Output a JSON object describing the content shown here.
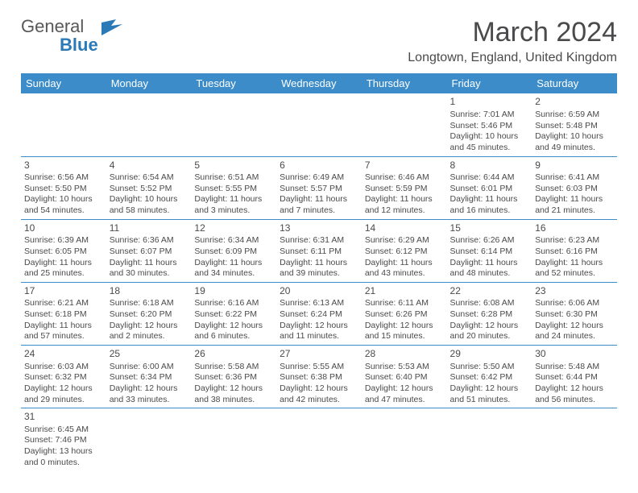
{
  "logo": {
    "textMain": "General",
    "textAccent": "Blue",
    "colors": {
      "main": "#58585a",
      "accent": "#2a7ab8"
    }
  },
  "header": {
    "monthTitle": "March 2024",
    "location": "Longtown, England, United Kingdom"
  },
  "calendar": {
    "dayHeaders": [
      "Sunday",
      "Monday",
      "Tuesday",
      "Wednesday",
      "Thursday",
      "Friday",
      "Saturday"
    ],
    "headerBg": "#3c8cc9",
    "borderColor": "#3c8cc9",
    "weeks": [
      [
        null,
        null,
        null,
        null,
        null,
        {
          "n": "1",
          "sunrise": "Sunrise: 7:01 AM",
          "sunset": "Sunset: 5:46 PM",
          "day1": "Daylight: 10 hours",
          "day2": "and 45 minutes."
        },
        {
          "n": "2",
          "sunrise": "Sunrise: 6:59 AM",
          "sunset": "Sunset: 5:48 PM",
          "day1": "Daylight: 10 hours",
          "day2": "and 49 minutes."
        }
      ],
      [
        {
          "n": "3",
          "sunrise": "Sunrise: 6:56 AM",
          "sunset": "Sunset: 5:50 PM",
          "day1": "Daylight: 10 hours",
          "day2": "and 54 minutes."
        },
        {
          "n": "4",
          "sunrise": "Sunrise: 6:54 AM",
          "sunset": "Sunset: 5:52 PM",
          "day1": "Daylight: 10 hours",
          "day2": "and 58 minutes."
        },
        {
          "n": "5",
          "sunrise": "Sunrise: 6:51 AM",
          "sunset": "Sunset: 5:55 PM",
          "day1": "Daylight: 11 hours",
          "day2": "and 3 minutes."
        },
        {
          "n": "6",
          "sunrise": "Sunrise: 6:49 AM",
          "sunset": "Sunset: 5:57 PM",
          "day1": "Daylight: 11 hours",
          "day2": "and 7 minutes."
        },
        {
          "n": "7",
          "sunrise": "Sunrise: 6:46 AM",
          "sunset": "Sunset: 5:59 PM",
          "day1": "Daylight: 11 hours",
          "day2": "and 12 minutes."
        },
        {
          "n": "8",
          "sunrise": "Sunrise: 6:44 AM",
          "sunset": "Sunset: 6:01 PM",
          "day1": "Daylight: 11 hours",
          "day2": "and 16 minutes."
        },
        {
          "n": "9",
          "sunrise": "Sunrise: 6:41 AM",
          "sunset": "Sunset: 6:03 PM",
          "day1": "Daylight: 11 hours",
          "day2": "and 21 minutes."
        }
      ],
      [
        {
          "n": "10",
          "sunrise": "Sunrise: 6:39 AM",
          "sunset": "Sunset: 6:05 PM",
          "day1": "Daylight: 11 hours",
          "day2": "and 25 minutes."
        },
        {
          "n": "11",
          "sunrise": "Sunrise: 6:36 AM",
          "sunset": "Sunset: 6:07 PM",
          "day1": "Daylight: 11 hours",
          "day2": "and 30 minutes."
        },
        {
          "n": "12",
          "sunrise": "Sunrise: 6:34 AM",
          "sunset": "Sunset: 6:09 PM",
          "day1": "Daylight: 11 hours",
          "day2": "and 34 minutes."
        },
        {
          "n": "13",
          "sunrise": "Sunrise: 6:31 AM",
          "sunset": "Sunset: 6:11 PM",
          "day1": "Daylight: 11 hours",
          "day2": "and 39 minutes."
        },
        {
          "n": "14",
          "sunrise": "Sunrise: 6:29 AM",
          "sunset": "Sunset: 6:12 PM",
          "day1": "Daylight: 11 hours",
          "day2": "and 43 minutes."
        },
        {
          "n": "15",
          "sunrise": "Sunrise: 6:26 AM",
          "sunset": "Sunset: 6:14 PM",
          "day1": "Daylight: 11 hours",
          "day2": "and 48 minutes."
        },
        {
          "n": "16",
          "sunrise": "Sunrise: 6:23 AM",
          "sunset": "Sunset: 6:16 PM",
          "day1": "Daylight: 11 hours",
          "day2": "and 52 minutes."
        }
      ],
      [
        {
          "n": "17",
          "sunrise": "Sunrise: 6:21 AM",
          "sunset": "Sunset: 6:18 PM",
          "day1": "Daylight: 11 hours",
          "day2": "and 57 minutes."
        },
        {
          "n": "18",
          "sunrise": "Sunrise: 6:18 AM",
          "sunset": "Sunset: 6:20 PM",
          "day1": "Daylight: 12 hours",
          "day2": "and 2 minutes."
        },
        {
          "n": "19",
          "sunrise": "Sunrise: 6:16 AM",
          "sunset": "Sunset: 6:22 PM",
          "day1": "Daylight: 12 hours",
          "day2": "and 6 minutes."
        },
        {
          "n": "20",
          "sunrise": "Sunrise: 6:13 AM",
          "sunset": "Sunset: 6:24 PM",
          "day1": "Daylight: 12 hours",
          "day2": "and 11 minutes."
        },
        {
          "n": "21",
          "sunrise": "Sunrise: 6:11 AM",
          "sunset": "Sunset: 6:26 PM",
          "day1": "Daylight: 12 hours",
          "day2": "and 15 minutes."
        },
        {
          "n": "22",
          "sunrise": "Sunrise: 6:08 AM",
          "sunset": "Sunset: 6:28 PM",
          "day1": "Daylight: 12 hours",
          "day2": "and 20 minutes."
        },
        {
          "n": "23",
          "sunrise": "Sunrise: 6:06 AM",
          "sunset": "Sunset: 6:30 PM",
          "day1": "Daylight: 12 hours",
          "day2": "and 24 minutes."
        }
      ],
      [
        {
          "n": "24",
          "sunrise": "Sunrise: 6:03 AM",
          "sunset": "Sunset: 6:32 PM",
          "day1": "Daylight: 12 hours",
          "day2": "and 29 minutes."
        },
        {
          "n": "25",
          "sunrise": "Sunrise: 6:00 AM",
          "sunset": "Sunset: 6:34 PM",
          "day1": "Daylight: 12 hours",
          "day2": "and 33 minutes."
        },
        {
          "n": "26",
          "sunrise": "Sunrise: 5:58 AM",
          "sunset": "Sunset: 6:36 PM",
          "day1": "Daylight: 12 hours",
          "day2": "and 38 minutes."
        },
        {
          "n": "27",
          "sunrise": "Sunrise: 5:55 AM",
          "sunset": "Sunset: 6:38 PM",
          "day1": "Daylight: 12 hours",
          "day2": "and 42 minutes."
        },
        {
          "n": "28",
          "sunrise": "Sunrise: 5:53 AM",
          "sunset": "Sunset: 6:40 PM",
          "day1": "Daylight: 12 hours",
          "day2": "and 47 minutes."
        },
        {
          "n": "29",
          "sunrise": "Sunrise: 5:50 AM",
          "sunset": "Sunset: 6:42 PM",
          "day1": "Daylight: 12 hours",
          "day2": "and 51 minutes."
        },
        {
          "n": "30",
          "sunrise": "Sunrise: 5:48 AM",
          "sunset": "Sunset: 6:44 PM",
          "day1": "Daylight: 12 hours",
          "day2": "and 56 minutes."
        }
      ],
      [
        {
          "n": "31",
          "sunrise": "Sunrise: 6:45 AM",
          "sunset": "Sunset: 7:46 PM",
          "day1": "Daylight: 13 hours",
          "day2": "and 0 minutes."
        },
        null,
        null,
        null,
        null,
        null,
        null
      ]
    ]
  }
}
